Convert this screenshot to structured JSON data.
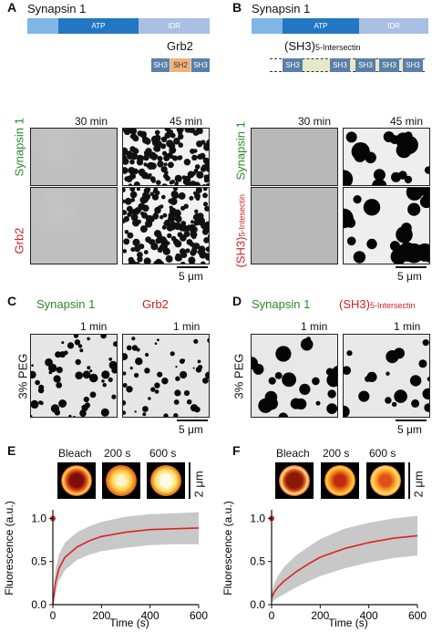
{
  "panels": {
    "A": {
      "letter": "A",
      "protein_top": "Synapsin 1",
      "domains": [
        "ATP",
        "IDR"
      ],
      "partner": "Grb2",
      "partner_domains": [
        "SH3",
        "SH2",
        "SH3"
      ],
      "times": [
        "30 min",
        "45 min"
      ],
      "row_labels": [
        "Synapsin 1",
        "Grb2"
      ],
      "scale": "5 μm"
    },
    "B": {
      "letter": "B",
      "protein_top": "Synapsin 1",
      "domains": [
        "ATP",
        "IDR"
      ],
      "partner_pre": "(SH3)",
      "partner_sub": "5-Intersectin",
      "partner_domains": [
        "SH3",
        "SH3",
        "SH3",
        "SH3",
        "SH3"
      ],
      "times": [
        "30 min",
        "45 min"
      ],
      "row_label_1": "Synapsin 1",
      "row_label_2_pre": "(SH3)",
      "row_label_2_sub": "5-Intesectin",
      "scale": "5 μm"
    },
    "C": {
      "letter": "C",
      "col_labels": [
        "Synapsin 1",
        "Grb2"
      ],
      "times": [
        "1 min",
        "1 min"
      ],
      "row_label": "3% PEG",
      "scale": "5 μm"
    },
    "D": {
      "letter": "D",
      "col_label_1": "Synapsin 1",
      "col_label_2_pre": "(SH3)",
      "col_label_2_sub": "5-Intersectin",
      "times": [
        "1 min",
        "1 min"
      ],
      "row_label": "3% PEG",
      "scale": "5 μm"
    },
    "E": {
      "letter": "E",
      "frames": [
        "Bleach",
        "200 s",
        "600 s"
      ],
      "scale": "2 μm"
    },
    "F": {
      "letter": "F",
      "frames": [
        "Bleach",
        "200 s",
        "600 s"
      ],
      "scale": "2 μm"
    }
  },
  "chart_data": [
    {
      "type": "line",
      "panel": "E",
      "xlabel": "Time (s)",
      "ylabel": "Fluorescence (a.u.)",
      "xlim": [
        0,
        600
      ],
      "ylim": [
        0,
        1.1
      ],
      "xticks": [
        0,
        200,
        400,
        600
      ],
      "yticks": [
        0.0,
        0.5,
        1.0
      ],
      "xtick_labels": [
        "0",
        "200",
        "400",
        "600"
      ],
      "ytick_labels": [
        "0.0",
        "0.5",
        "1.0"
      ],
      "prebleach_point": {
        "x": 0,
        "y": 1.0
      },
      "series": [
        {
          "x": [
            0,
            10,
            25,
            50,
            100,
            150,
            200,
            300,
            400,
            500,
            600
          ],
          "y": [
            0.0,
            0.25,
            0.42,
            0.55,
            0.67,
            0.74,
            0.79,
            0.84,
            0.87,
            0.88,
            0.89
          ]
        }
      ],
      "band": {
        "x": [
          0,
          10,
          25,
          50,
          100,
          150,
          200,
          300,
          400,
          500,
          600
        ],
        "lower": [
          0.0,
          0.12,
          0.28,
          0.4,
          0.52,
          0.58,
          0.62,
          0.66,
          0.69,
          0.7,
          0.7
        ],
        "upper": [
          0.0,
          0.4,
          0.58,
          0.72,
          0.84,
          0.91,
          0.96,
          1.02,
          1.05,
          1.06,
          1.07
        ]
      },
      "colors": {
        "line": "#d8261c",
        "band": "#c8c8c8",
        "point": "#d8261c"
      }
    },
    {
      "type": "line",
      "panel": "F",
      "xlabel": "Time (s)",
      "ylabel": "Fluorescence (a.u.)",
      "xlim": [
        0,
        600
      ],
      "ylim": [
        0,
        1.1
      ],
      "xticks": [
        0,
        200,
        400,
        600
      ],
      "yticks": [
        0.0,
        0.5,
        1.0
      ],
      "xtick_labels": [
        "0",
        "200",
        "400",
        "600"
      ],
      "ytick_labels": [
        "0.0",
        "0.5",
        "1.0"
      ],
      "prebleach_point": {
        "x": 0,
        "y": 1.0
      },
      "series": [
        {
          "x": [
            0,
            10,
            25,
            50,
            100,
            150,
            200,
            300,
            400,
            500,
            600
          ],
          "y": [
            0.08,
            0.14,
            0.2,
            0.27,
            0.38,
            0.47,
            0.55,
            0.65,
            0.72,
            0.77,
            0.8
          ]
        }
      ],
      "band": {
        "x": [
          0,
          10,
          25,
          50,
          100,
          150,
          200,
          300,
          400,
          500,
          600
        ],
        "lower": [
          0.03,
          0.05,
          0.08,
          0.12,
          0.2,
          0.27,
          0.33,
          0.42,
          0.49,
          0.54,
          0.57
        ],
        "upper": [
          0.13,
          0.24,
          0.33,
          0.43,
          0.57,
          0.67,
          0.76,
          0.88,
          0.95,
          1.0,
          1.03
        ]
      },
      "colors": {
        "line": "#d8261c",
        "band": "#c8c8c8",
        "point": "#d8261c"
      }
    }
  ]
}
